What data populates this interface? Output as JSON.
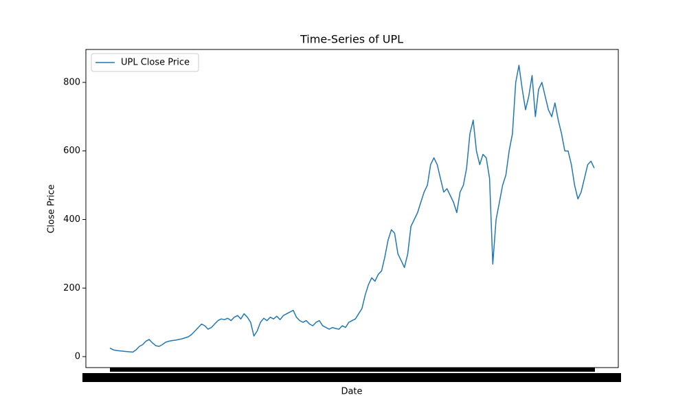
{
  "chart_data": {
    "type": "line",
    "title": "Time-Series of UPL",
    "x_label": "Date",
    "y_label": "Close Price",
    "series": [
      {
        "name": "UPL Close Price",
        "color": "#1f77b4",
        "values": [
          25,
          20,
          18,
          17,
          16,
          15,
          14,
          13,
          20,
          30,
          35,
          45,
          50,
          40,
          32,
          30,
          35,
          42,
          45,
          47,
          48,
          50,
          52,
          55,
          58,
          65,
          75,
          85,
          95,
          90,
          80,
          85,
          95,
          105,
          110,
          108,
          112,
          105,
          115,
          120,
          110,
          125,
          115,
          100,
          60,
          75,
          100,
          112,
          105,
          115,
          110,
          118,
          108,
          120,
          125,
          130,
          135,
          115,
          105,
          100,
          105,
          95,
          90,
          100,
          105,
          90,
          85,
          80,
          85,
          82,
          80,
          90,
          85,
          100,
          105,
          110,
          125,
          140,
          180,
          210,
          230,
          220,
          240,
          250,
          290,
          340,
          370,
          360,
          300,
          280,
          260,
          300,
          380,
          400,
          420,
          450,
          480,
          500,
          560,
          580,
          560,
          520,
          480,
          490,
          470,
          450,
          420,
          480,
          500,
          550,
          650,
          690,
          600,
          560,
          590,
          580,
          520,
          270,
          400,
          450,
          500,
          530,
          600,
          650,
          800,
          850,
          780,
          720,
          760,
          820,
          700,
          780,
          800,
          760,
          720,
          700,
          740,
          690,
          650,
          600,
          600,
          560,
          500,
          460,
          480,
          520,
          560,
          570,
          550
        ]
      }
    ],
    "ylim": [
      -32,
      896
    ],
    "yticks": [
      0,
      200,
      400,
      600,
      800
    ],
    "legend": "upper left",
    "grid": false
  }
}
